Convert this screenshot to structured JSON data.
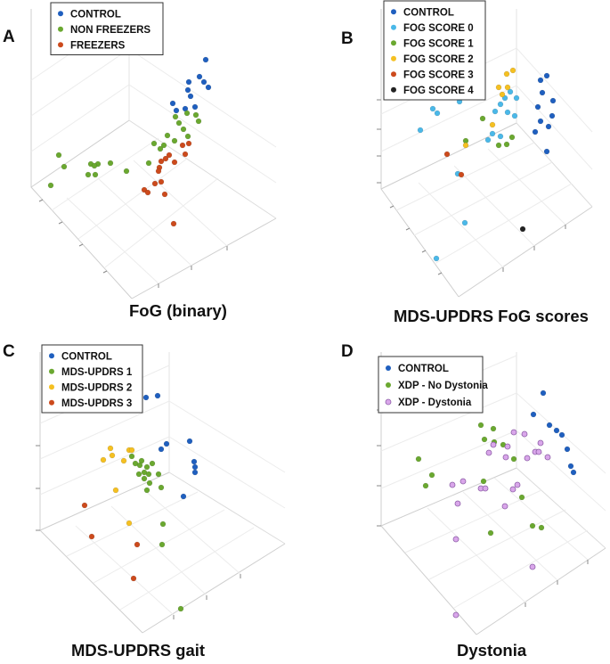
{
  "chart_data": [
    {
      "type": "scatter",
      "panel": "A",
      "title": "FoG (binary)",
      "series": [
        {
          "name": "CONTROL",
          "color": "#1f5fbf",
          "points": [
            [
              231,
              67
            ],
            [
              224,
              86
            ],
            [
              212,
              92
            ],
            [
              229,
              92
            ],
            [
              234,
              98
            ],
            [
              211,
              101
            ],
            [
              214,
              108
            ],
            [
              194,
              116
            ],
            [
              219,
              120
            ],
            [
              208,
              122
            ],
            [
              198,
              124
            ]
          ]
        },
        {
          "name": "NON FREEZERS",
          "color": "#6aa830",
          "points": [
            [
              210,
              127
            ],
            [
              220,
              129
            ],
            [
              197,
              131
            ],
            [
              223,
              136
            ],
            [
              201,
              138
            ],
            [
              206,
              145
            ],
            [
              188,
              152
            ],
            [
              211,
              153
            ],
            [
              196,
              158
            ],
            [
              173,
              161
            ],
            [
              184,
              163
            ],
            [
              180,
              167
            ],
            [
              124,
              183
            ],
            [
              167,
              183
            ],
            [
              102,
              184
            ],
            [
              110,
              184
            ],
            [
              106,
              186
            ],
            [
              72,
              187
            ],
            [
              142,
              192
            ],
            [
              99,
              196
            ],
            [
              107,
              196
            ],
            [
              57,
              208
            ],
            [
              66,
              174
            ]
          ]
        },
        {
          "name": "FREEZERS",
          "color": "#cc4a1c",
          "points": [
            [
              212,
              161
            ],
            [
              205,
              163
            ],
            [
              208,
              173
            ],
            [
              190,
              174
            ],
            [
              186,
              178
            ],
            [
              181,
              181
            ],
            [
              196,
              182
            ],
            [
              179,
              188
            ],
            [
              178,
              192
            ],
            [
              181,
              204
            ],
            [
              174,
              206
            ],
            [
              162,
              213
            ],
            [
              166,
              216
            ],
            [
              185,
              218
            ],
            [
              195,
              251
            ]
          ]
        }
      ]
    },
    {
      "type": "scatter",
      "panel": "B",
      "title": "MDS-UPDRS FoG scores",
      "series": [
        {
          "name": "CONTROL",
          "color": "#1f5fbf",
          "points": [
            [
              607,
              90
            ],
            [
              614,
              85
            ],
            [
              609,
              104
            ],
            [
              621,
              113
            ],
            [
              604,
              120
            ],
            [
              620,
              130
            ],
            [
              607,
              136
            ],
            [
              616,
              142
            ],
            [
              601,
              148
            ],
            [
              614,
              170
            ]
          ]
        },
        {
          "name": "FOG SCORE 0",
          "color": "#4ab8e8",
          "points": [
            [
              486,
              122
            ],
            [
              491,
              127
            ],
            [
              516,
              114
            ],
            [
              573,
              103
            ],
            [
              567,
              110
            ],
            [
              580,
              110
            ],
            [
              562,
              117
            ],
            [
              556,
              125
            ],
            [
              570,
              126
            ],
            [
              578,
              130
            ],
            [
              553,
              150
            ],
            [
              562,
              153
            ],
            [
              548,
              157
            ],
            [
              472,
              146
            ],
            [
              514,
              195
            ],
            [
              522,
              250
            ],
            [
              490,
              290
            ]
          ]
        },
        {
          "name": "FOG SCORE 1",
          "color": "#6aa830",
          "points": [
            [
              542,
              133
            ],
            [
              575,
              154
            ],
            [
              569,
              162
            ],
            [
              523,
              158
            ],
            [
              560,
              163
            ]
          ]
        },
        {
          "name": "FOG SCORE 2",
          "color": "#f5c021",
          "points": [
            [
              569,
              83
            ],
            [
              576,
              79
            ],
            [
              560,
              98
            ],
            [
              570,
              98
            ],
            [
              564,
              106
            ],
            [
              553,
              140
            ],
            [
              523,
              163
            ]
          ]
        },
        {
          "name": "FOG SCORE 3",
          "color": "#cc4a1c",
          "points": [
            [
              502,
              173
            ],
            [
              518,
              196
            ]
          ]
        },
        {
          "name": "FOG SCORE 4",
          "color": "#222222",
          "points": [
            [
              587,
              257
            ]
          ]
        }
      ]
    },
    {
      "type": "scatter",
      "panel": "C",
      "title": "MDS-UPDRS gait",
      "series": [
        {
          "name": "CONTROL",
          "color": "#1f5fbf",
          "points": [
            [
              164,
              446
            ],
            [
              177,
              444
            ],
            [
              213,
              495
            ],
            [
              187,
              498
            ],
            [
              218,
              518
            ],
            [
              219,
              524
            ],
            [
              219,
              530
            ],
            [
              181,
              504
            ],
            [
              206,
              557
            ]
          ]
        },
        {
          "name": "MDS-UPDRS 1",
          "color": "#6aa830",
          "points": [
            [
              148,
              512
            ],
            [
              159,
              517
            ],
            [
              152,
              520
            ],
            [
              157,
              522
            ],
            [
              165,
              524
            ],
            [
              171,
              520
            ],
            [
              162,
              530
            ],
            [
              167,
              532
            ],
            [
              156,
              532
            ],
            [
              178,
              532
            ],
            [
              162,
              537
            ],
            [
              168,
              542
            ],
            [
              181,
              547
            ],
            [
              165,
              550
            ],
            [
              183,
              588
            ],
            [
              182,
              611
            ],
            [
              203,
              683
            ]
          ]
        },
        {
          "name": "MDS-UPDRS 2",
          "color": "#f5c021",
          "points": [
            [
              137,
              458
            ],
            [
              124,
              503
            ],
            [
              145,
              505
            ],
            [
              126,
              511
            ],
            [
              116,
              516
            ],
            [
              139,
              517
            ],
            [
              148,
              505
            ],
            [
              130,
              550
            ],
            [
              145,
              587
            ]
          ]
        },
        {
          "name": "MDS-UPDRS 3",
          "color": "#cc4a1c",
          "points": [
            [
              95,
              567
            ],
            [
              103,
              602
            ],
            [
              154,
              611
            ],
            [
              150,
              649
            ]
          ]
        }
      ]
    },
    {
      "type": "scatter",
      "panel": "D",
      "title": "Dystonia",
      "series": [
        {
          "name": "CONTROL",
          "color": "#1f5fbf",
          "points": [
            [
              610,
              441
            ],
            [
              599,
              465
            ],
            [
              617,
              477
            ],
            [
              625,
              483
            ],
            [
              631,
              488
            ],
            [
              637,
              504
            ],
            [
              641,
              523
            ],
            [
              644,
              530
            ]
          ]
        },
        {
          "name": "XDP - No Dystonia",
          "color": "#6aa830",
          "points": [
            [
              540,
              477
            ],
            [
              554,
              481
            ],
            [
              544,
              493
            ],
            [
              555,
              496
            ],
            [
              565,
              499
            ],
            [
              577,
              515
            ],
            [
              470,
              515
            ],
            [
              485,
              533
            ],
            [
              478,
              545
            ],
            [
              543,
              540
            ],
            [
              586,
              558
            ],
            [
              551,
              598
            ],
            [
              598,
              590
            ],
            [
              608,
              592
            ]
          ]
        },
        {
          "name": "XDP - Dystonia",
          "color": "#d9a6ea",
          "points": [
            [
              577,
              485
            ],
            [
              589,
              487
            ],
            [
              607,
              497
            ],
            [
              554,
              499
            ],
            [
              570,
              501
            ],
            [
              549,
              508
            ],
            [
              568,
              513
            ],
            [
              592,
              514
            ],
            [
              615,
              513
            ],
            [
              601,
              507
            ],
            [
              605,
              507
            ],
            [
              520,
              540
            ],
            [
              508,
              544
            ],
            [
              540,
              548
            ],
            [
              545,
              548
            ],
            [
              581,
              544
            ],
            [
              576,
              549
            ],
            [
              514,
              565
            ],
            [
              567,
              568
            ],
            [
              512,
              605
            ],
            [
              598,
              636
            ],
            [
              512,
              690
            ]
          ]
        }
      ]
    }
  ]
}
